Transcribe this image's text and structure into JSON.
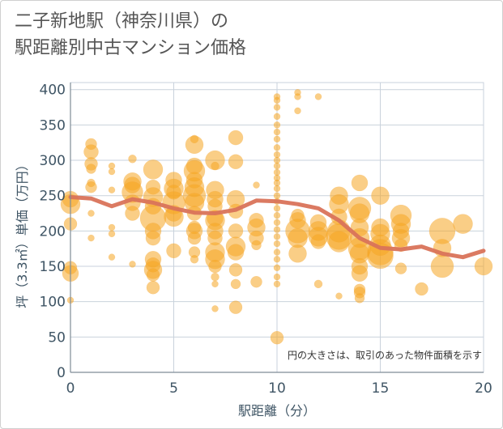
{
  "title_line1": "二子新地駅（神奈川県）の",
  "title_line2": "駅距離別中古マンション価格",
  "chart_data": {
    "type": "scatter",
    "xlabel": "駅距離（分）",
    "ylabel": "坪（3.3㎡）単価（万円）",
    "annotation": "円の大きさは、取引のあった物件面積を示す",
    "xlim": [
      0,
      20
    ],
    "ylim": [
      0,
      410
    ],
    "xticks": [
      0,
      5,
      10,
      15,
      20
    ],
    "yticks": [
      0,
      50,
      100,
      150,
      200,
      250,
      300,
      350,
      400
    ],
    "colors": {
      "bubble": "#f5a623",
      "line": "#d9735a",
      "grid": "#c9d2dc",
      "tick": "#3f5565"
    },
    "points": [
      {
        "x": 0,
        "y": 245,
        "s": 10
      },
      {
        "x": 0,
        "y": 238,
        "s": 12
      },
      {
        "x": 0,
        "y": 210,
        "s": 8
      },
      {
        "x": 0,
        "y": 148,
        "s": 8
      },
      {
        "x": 0,
        "y": 140,
        "s": 10
      },
      {
        "x": 0,
        "y": 102,
        "s": 4
      },
      {
        "x": 1,
        "y": 323,
        "s": 7
      },
      {
        "x": 1,
        "y": 312,
        "s": 9
      },
      {
        "x": 1,
        "y": 295,
        "s": 8
      },
      {
        "x": 1,
        "y": 288,
        "s": 6
      },
      {
        "x": 1,
        "y": 268,
        "s": 5
      },
      {
        "x": 1,
        "y": 262,
        "s": 7
      },
      {
        "x": 1,
        "y": 225,
        "s": 4
      },
      {
        "x": 1,
        "y": 190,
        "s": 4
      },
      {
        "x": 2,
        "y": 292,
        "s": 4
      },
      {
        "x": 2,
        "y": 284,
        "s": 4
      },
      {
        "x": 2,
        "y": 258,
        "s": 4
      },
      {
        "x": 2,
        "y": 205,
        "s": 4
      },
      {
        "x": 2,
        "y": 196,
        "s": 4
      },
      {
        "x": 2,
        "y": 163,
        "s": 4
      },
      {
        "x": 3,
        "y": 302,
        "s": 5
      },
      {
        "x": 3,
        "y": 270,
        "s": 11
      },
      {
        "x": 3,
        "y": 265,
        "s": 10
      },
      {
        "x": 3,
        "y": 255,
        "s": 13
      },
      {
        "x": 3,
        "y": 240,
        "s": 10
      },
      {
        "x": 3,
        "y": 225,
        "s": 9
      },
      {
        "x": 3,
        "y": 153,
        "s": 4
      },
      {
        "x": 4,
        "y": 287,
        "s": 12
      },
      {
        "x": 4,
        "y": 262,
        "s": 9
      },
      {
        "x": 4,
        "y": 248,
        "s": 12
      },
      {
        "x": 4,
        "y": 235,
        "s": 10
      },
      {
        "x": 4,
        "y": 218,
        "s": 16
      },
      {
        "x": 4,
        "y": 200,
        "s": 10
      },
      {
        "x": 4,
        "y": 190,
        "s": 9
      },
      {
        "x": 4,
        "y": 160,
        "s": 10
      },
      {
        "x": 4,
        "y": 152,
        "s": 9
      },
      {
        "x": 4,
        "y": 145,
        "s": 11
      },
      {
        "x": 4,
        "y": 138,
        "s": 8
      },
      {
        "x": 4,
        "y": 120,
        "s": 8
      },
      {
        "x": 5,
        "y": 272,
        "s": 10
      },
      {
        "x": 5,
        "y": 260,
        "s": 12
      },
      {
        "x": 5,
        "y": 255,
        "s": 9
      },
      {
        "x": 5,
        "y": 240,
        "s": 14
      },
      {
        "x": 5,
        "y": 225,
        "s": 10
      },
      {
        "x": 5,
        "y": 220,
        "s": 12
      },
      {
        "x": 5,
        "y": 172,
        "s": 9
      },
      {
        "x": 6,
        "y": 330,
        "s": 5
      },
      {
        "x": 6,
        "y": 322,
        "s": 11
      },
      {
        "x": 6,
        "y": 292,
        "s": 10
      },
      {
        "x": 6,
        "y": 285,
        "s": 13
      },
      {
        "x": 6,
        "y": 272,
        "s": 10
      },
      {
        "x": 6,
        "y": 262,
        "s": 12
      },
      {
        "x": 6,
        "y": 250,
        "s": 14
      },
      {
        "x": 6,
        "y": 240,
        "s": 12
      },
      {
        "x": 6,
        "y": 225,
        "s": 9
      },
      {
        "x": 6,
        "y": 205,
        "s": 8
      },
      {
        "x": 6,
        "y": 200,
        "s": 10
      },
      {
        "x": 6,
        "y": 190,
        "s": 8
      },
      {
        "x": 6,
        "y": 170,
        "s": 7
      },
      {
        "x": 6,
        "y": 160,
        "s": 5
      },
      {
        "x": 7,
        "y": 300,
        "s": 12
      },
      {
        "x": 7,
        "y": 292,
        "s": 5
      },
      {
        "x": 7,
        "y": 258,
        "s": 11
      },
      {
        "x": 7,
        "y": 245,
        "s": 10
      },
      {
        "x": 7,
        "y": 235,
        "s": 9
      },
      {
        "x": 7,
        "y": 218,
        "s": 10
      },
      {
        "x": 7,
        "y": 215,
        "s": 12
      },
      {
        "x": 7,
        "y": 200,
        "s": 10
      },
      {
        "x": 7,
        "y": 190,
        "s": 9
      },
      {
        "x": 7,
        "y": 170,
        "s": 12
      },
      {
        "x": 7,
        "y": 160,
        "s": 12
      },
      {
        "x": 7,
        "y": 150,
        "s": 8
      },
      {
        "x": 7,
        "y": 135,
        "s": 5
      },
      {
        "x": 7,
        "y": 125,
        "s": 4
      },
      {
        "x": 7,
        "y": 90,
        "s": 4
      },
      {
        "x": 8,
        "y": 332,
        "s": 9
      },
      {
        "x": 8,
        "y": 298,
        "s": 9
      },
      {
        "x": 8,
        "y": 245,
        "s": 11
      },
      {
        "x": 8,
        "y": 228,
        "s": 9
      },
      {
        "x": 8,
        "y": 200,
        "s": 9
      },
      {
        "x": 8,
        "y": 178,
        "s": 12
      },
      {
        "x": 8,
        "y": 170,
        "s": 10
      },
      {
        "x": 8,
        "y": 145,
        "s": 8
      },
      {
        "x": 8,
        "y": 125,
        "s": 6
      },
      {
        "x": 8,
        "y": 92,
        "s": 8
      },
      {
        "x": 9,
        "y": 265,
        "s": 4
      },
      {
        "x": 9,
        "y": 215,
        "s": 9
      },
      {
        "x": 9,
        "y": 205,
        "s": 11
      },
      {
        "x": 9,
        "y": 190,
        "s": 9
      },
      {
        "x": 9,
        "y": 180,
        "s": 6
      },
      {
        "x": 9,
        "y": 128,
        "s": 7
      },
      {
        "x": 10,
        "y": 390,
        "s": 4
      },
      {
        "x": 10,
        "y": 385,
        "s": 4
      },
      {
        "x": 10,
        "y": 375,
        "s": 4
      },
      {
        "x": 10,
        "y": 362,
        "s": 4
      },
      {
        "x": 10,
        "y": 350,
        "s": 4
      },
      {
        "x": 10,
        "y": 340,
        "s": 4
      },
      {
        "x": 10,
        "y": 330,
        "s": 4
      },
      {
        "x": 10,
        "y": 318,
        "s": 4
      },
      {
        "x": 10,
        "y": 308,
        "s": 4
      },
      {
        "x": 10,
        "y": 300,
        "s": 4
      },
      {
        "x": 10,
        "y": 292,
        "s": 4
      },
      {
        "x": 10,
        "y": 283,
        "s": 4
      },
      {
        "x": 10,
        "y": 275,
        "s": 4
      },
      {
        "x": 10,
        "y": 268,
        "s": 4
      },
      {
        "x": 10,
        "y": 260,
        "s": 4
      },
      {
        "x": 10,
        "y": 250,
        "s": 4
      },
      {
        "x": 10,
        "y": 242,
        "s": 4
      },
      {
        "x": 10,
        "y": 232,
        "s": 4
      },
      {
        "x": 10,
        "y": 222,
        "s": 4
      },
      {
        "x": 10,
        "y": 212,
        "s": 4
      },
      {
        "x": 10,
        "y": 202,
        "s": 4
      },
      {
        "x": 10,
        "y": 192,
        "s": 4
      },
      {
        "x": 10,
        "y": 182,
        "s": 4
      },
      {
        "x": 10,
        "y": 170,
        "s": 4
      },
      {
        "x": 10,
        "y": 160,
        "s": 4
      },
      {
        "x": 10,
        "y": 148,
        "s": 4
      },
      {
        "x": 10,
        "y": 135,
        "s": 4
      },
      {
        "x": 10,
        "y": 125,
        "s": 4
      },
      {
        "x": 10,
        "y": 49,
        "s": 8
      },
      {
        "x": 11,
        "y": 396,
        "s": 4
      },
      {
        "x": 11,
        "y": 390,
        "s": 4
      },
      {
        "x": 11,
        "y": 370,
        "s": 4
      },
      {
        "x": 11,
        "y": 222,
        "s": 8
      },
      {
        "x": 11,
        "y": 215,
        "s": 10
      },
      {
        "x": 11,
        "y": 200,
        "s": 15
      },
      {
        "x": 11,
        "y": 190,
        "s": 12
      },
      {
        "x": 11,
        "y": 168,
        "s": 11
      },
      {
        "x": 12,
        "y": 390,
        "s": 4
      },
      {
        "x": 12,
        "y": 212,
        "s": 10
      },
      {
        "x": 12,
        "y": 200,
        "s": 12
      },
      {
        "x": 12,
        "y": 192,
        "s": 12
      },
      {
        "x": 12,
        "y": 185,
        "s": 9
      },
      {
        "x": 12,
        "y": 125,
        "s": 5
      },
      {
        "x": 13,
        "y": 250,
        "s": 11
      },
      {
        "x": 13,
        "y": 238,
        "s": 12
      },
      {
        "x": 13,
        "y": 220,
        "s": 10
      },
      {
        "x": 13,
        "y": 200,
        "s": 14
      },
      {
        "x": 13,
        "y": 192,
        "s": 16
      },
      {
        "x": 13,
        "y": 185,
        "s": 13
      },
      {
        "x": 13,
        "y": 108,
        "s": 4
      },
      {
        "x": 14,
        "y": 268,
        "s": 10
      },
      {
        "x": 14,
        "y": 232,
        "s": 14
      },
      {
        "x": 14,
        "y": 225,
        "s": 12
      },
      {
        "x": 14,
        "y": 205,
        "s": 11
      },
      {
        "x": 14,
        "y": 190,
        "s": 12
      },
      {
        "x": 14,
        "y": 175,
        "s": 14
      },
      {
        "x": 14,
        "y": 168,
        "s": 12
      },
      {
        "x": 14,
        "y": 150,
        "s": 10
      },
      {
        "x": 14,
        "y": 140,
        "s": 10
      },
      {
        "x": 14,
        "y": 117,
        "s": 7
      },
      {
        "x": 14,
        "y": 113,
        "s": 7
      },
      {
        "x": 14,
        "y": 105,
        "s": 6
      },
      {
        "x": 15,
        "y": 250,
        "s": 11
      },
      {
        "x": 15,
        "y": 205,
        "s": 11
      },
      {
        "x": 15,
        "y": 196,
        "s": 12
      },
      {
        "x": 15,
        "y": 180,
        "s": 13
      },
      {
        "x": 15,
        "y": 170,
        "s": 16
      },
      {
        "x": 15,
        "y": 165,
        "s": 16
      },
      {
        "x": 16,
        "y": 222,
        "s": 13
      },
      {
        "x": 16,
        "y": 210,
        "s": 12
      },
      {
        "x": 16,
        "y": 200,
        "s": 10
      },
      {
        "x": 16,
        "y": 190,
        "s": 11
      },
      {
        "x": 16,
        "y": 180,
        "s": 8
      },
      {
        "x": 16,
        "y": 147,
        "s": 7
      },
      {
        "x": 17,
        "y": 118,
        "s": 8
      },
      {
        "x": 18,
        "y": 200,
        "s": 16
      },
      {
        "x": 18,
        "y": 176,
        "s": 11
      },
      {
        "x": 18,
        "y": 150,
        "s": 14
      },
      {
        "x": 19,
        "y": 210,
        "s": 12
      },
      {
        "x": 20,
        "y": 150,
        "s": 11
      }
    ],
    "trend": [
      {
        "x": 0,
        "y": 248
      },
      {
        "x": 1,
        "y": 246
      },
      {
        "x": 2,
        "y": 235
      },
      {
        "x": 3,
        "y": 245
      },
      {
        "x": 4,
        "y": 240
      },
      {
        "x": 5,
        "y": 232
      },
      {
        "x": 6,
        "y": 226
      },
      {
        "x": 7,
        "y": 225
      },
      {
        "x": 8,
        "y": 230
      },
      {
        "x": 9,
        "y": 243
      },
      {
        "x": 10,
        "y": 242
      },
      {
        "x": 11,
        "y": 238
      },
      {
        "x": 12,
        "y": 232
      },
      {
        "x": 13,
        "y": 215
      },
      {
        "x": 14,
        "y": 190
      },
      {
        "x": 15,
        "y": 176
      },
      {
        "x": 16,
        "y": 174
      },
      {
        "x": 17,
        "y": 178
      },
      {
        "x": 18,
        "y": 168
      },
      {
        "x": 19,
        "y": 163
      },
      {
        "x": 20,
        "y": 172
      }
    ]
  }
}
